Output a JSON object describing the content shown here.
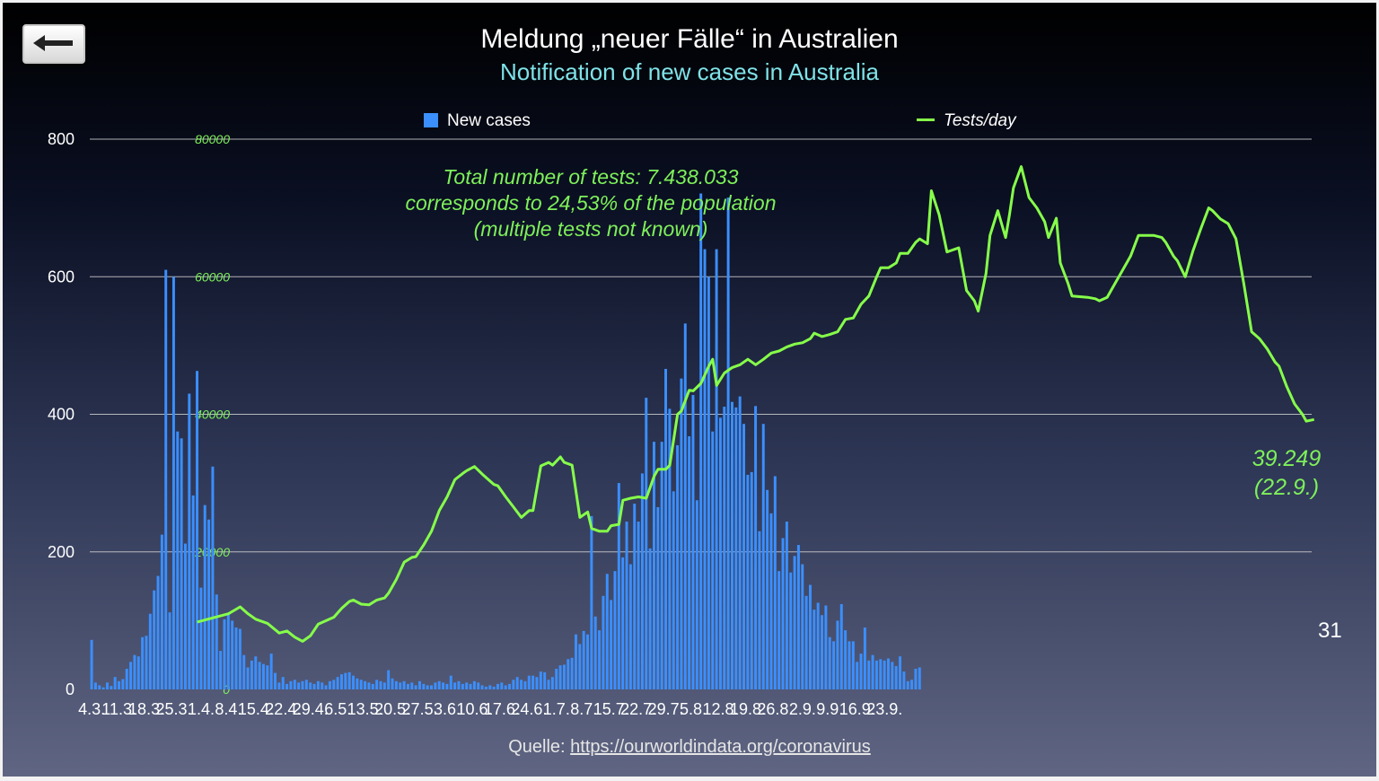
{
  "header": {
    "title": "Meldung „neuer Fälle“ in Australien",
    "subtitle": "Notification of new cases in Australia"
  },
  "legend": {
    "cases": "New cases",
    "tests": "Tests/day"
  },
  "annotation": {
    "line1": "Total number of tests: 7.438.033",
    "line2": "corresponds to 24,53% of the population",
    "line3": "(multiple tests not known)"
  },
  "end_label": {
    "value": "39.249",
    "date": "(22.9.)"
  },
  "page_number": "31",
  "source": {
    "prefix": "Quelle: ",
    "link": "https://ourworldindata.org/coronavirus"
  },
  "colors": {
    "bars": "#3b8fff",
    "tests_line": "#86ff4a",
    "annotation": "#7ef05a",
    "subtitle": "#7fe3e8"
  },
  "icons": {
    "back": "left-arrow-icon"
  },
  "chart_data": {
    "type": "bar",
    "start_date": "2020-03-04",
    "end_date": "2020-09-23",
    "ylim": [
      0,
      800
    ],
    "y2lim": [
      0,
      80000
    ],
    "yticks": [
      "0",
      "200",
      "400",
      "600",
      "800"
    ],
    "y2ticks": [
      "0",
      "20000",
      "40000",
      "60000",
      "80000"
    ],
    "xticks": [
      "4.3.",
      "11.3.",
      "18.3.",
      "25.3.",
      "1.4.",
      "8.4.",
      "15.4.",
      "22.4.",
      "29.4.",
      "6.5.",
      "13.5.",
      "20.5.",
      "27.5.",
      "3.6.",
      "10.6.",
      "17.6.",
      "24.6.",
      "1.7.",
      "8.7.",
      "15.7.",
      "22.7.",
      "29.7.",
      "5.8.",
      "12.8.",
      "19.8.",
      "26.8.",
      "2.9.",
      "9.9.",
      "16.9.",
      "23.9."
    ],
    "series": [
      {
        "name": "New cases",
        "type": "bar",
        "axis": "left",
        "values": [
          72,
          10,
          6,
          3,
          10,
          5,
          18,
          12,
          15,
          30,
          40,
          50,
          48,
          76,
          78,
          110,
          144,
          165,
          225,
          610,
          112,
          600,
          375,
          365,
          212,
          430,
          282,
          463,
          148,
          268,
          247,
          324,
          138,
          56,
          102,
          110,
          100,
          90,
          88,
          50,
          32,
          42,
          48,
          40,
          37,
          35,
          52,
          24,
          10,
          18,
          8,
          12,
          14,
          10,
          12,
          14,
          10,
          8,
          12,
          10,
          6,
          12,
          14,
          18,
          22,
          24,
          25,
          20,
          16,
          14,
          12,
          10,
          8,
          14,
          12,
          10,
          28,
          16,
          12,
          10,
          12,
          8,
          10,
          6,
          12,
          8,
          6,
          6,
          10,
          12,
          10,
          8,
          20,
          10,
          12,
          8,
          10,
          8,
          12,
          10,
          6,
          4,
          6,
          4,
          8,
          10,
          6,
          8,
          14,
          18,
          14,
          12,
          20,
          20,
          18,
          26,
          25,
          14,
          18,
          30,
          35,
          36,
          44,
          46,
          80,
          66,
          85,
          80,
          252,
          106,
          86,
          136,
          168,
          130,
          172,
          300,
          192,
          244,
          182,
          270,
          244,
          314,
          424,
          205,
          360,
          265,
          360,
          466,
          408,
          288,
          355,
          452,
          532,
          368,
          428,
          275,
          721,
          640,
          600,
          375,
          640,
          395,
          411,
          715,
          418,
          410,
          426,
          386,
          312,
          316,
          412,
          230,
          386,
          290,
          256,
          310,
          172,
          220,
          244,
          170,
          194,
          210,
          182,
          136,
          152,
          116,
          126,
          108,
          122,
          76,
          70,
          100,
          124,
          86,
          70,
          70,
          40,
          52,
          90,
          42,
          50,
          42,
          44,
          42,
          45,
          40,
          34,
          48,
          26,
          12,
          14,
          30,
          32
        ]
      },
      {
        "name": "Tests/day",
        "type": "line",
        "axis": "right",
        "points": [
          [
            27,
            9800
          ],
          [
            35,
            11000
          ],
          [
            38,
            12000
          ],
          [
            40,
            11000
          ],
          [
            42,
            10200
          ],
          [
            45,
            9600
          ],
          [
            48,
            8200
          ],
          [
            50,
            8500
          ],
          [
            52,
            7600
          ],
          [
            54,
            7000
          ],
          [
            56,
            7800
          ],
          [
            58,
            9500
          ],
          [
            60,
            10000
          ],
          [
            62,
            10500
          ],
          [
            64,
            11800
          ],
          [
            66,
            12800
          ],
          [
            67,
            13000
          ],
          [
            69,
            12400
          ],
          [
            71,
            12300
          ],
          [
            73,
            13000
          ],
          [
            75,
            13300
          ],
          [
            76,
            14000
          ],
          [
            78,
            16000
          ],
          [
            80,
            18500
          ],
          [
            82,
            19200
          ],
          [
            83,
            19300
          ],
          [
            85,
            21000
          ],
          [
            87,
            23000
          ],
          [
            89,
            26000
          ],
          [
            91,
            28000
          ],
          [
            93,
            30500
          ],
          [
            95,
            31400
          ],
          [
            96,
            31800
          ],
          [
            98,
            32400
          ],
          [
            100,
            31300
          ],
          [
            103,
            29800
          ],
          [
            104,
            29600
          ],
          [
            106,
            28000
          ],
          [
            108,
            26500
          ],
          [
            110,
            25000
          ],
          [
            112,
            26000
          ],
          [
            113,
            26000
          ],
          [
            115,
            32500
          ],
          [
            117,
            33000
          ],
          [
            118,
            32600
          ],
          [
            120,
            33800
          ],
          [
            121,
            33000
          ],
          [
            123,
            32600
          ],
          [
            125,
            25000
          ],
          [
            127,
            25800
          ],
          [
            128,
            23400
          ],
          [
            130,
            23000
          ],
          [
            132,
            23000
          ],
          [
            133,
            23800
          ],
          [
            135,
            24000
          ],
          [
            136,
            27500
          ],
          [
            138,
            27800
          ],
          [
            140,
            28000
          ],
          [
            142,
            27800
          ],
          [
            144,
            31000
          ],
          [
            145,
            32000
          ],
          [
            147,
            32000
          ],
          [
            148,
            32600
          ],
          [
            150,
            40000
          ],
          [
            151,
            40500
          ],
          [
            153,
            43500
          ],
          [
            154,
            43400
          ],
          [
            156,
            44500
          ],
          [
            158,
            47000
          ],
          [
            159,
            48000
          ],
          [
            160,
            44200
          ],
          [
            162,
            46000
          ],
          [
            164,
            46800
          ],
          [
            166,
            47200
          ],
          [
            168,
            48000
          ],
          [
            170,
            47200
          ],
          [
            172,
            48000
          ],
          [
            174,
            48900
          ],
          [
            176,
            49200
          ],
          [
            178,
            49800
          ],
          [
            180,
            50200
          ],
          [
            182,
            50400
          ],
          [
            184,
            51000
          ],
          [
            185,
            51800
          ],
          [
            187,
            51300
          ],
          [
            189,
            51600
          ],
          [
            191,
            52000
          ],
          [
            193,
            53800
          ],
          [
            195,
            54000
          ],
          [
            197,
            56000
          ],
          [
            199,
            57200
          ],
          [
            201,
            60000
          ],
          [
            202,
            61300
          ],
          [
            204,
            61300
          ],
          [
            206,
            62000
          ],
          [
            207,
            63400
          ],
          [
            209,
            63400
          ],
          [
            211,
            65000
          ],
          [
            212,
            65500
          ],
          [
            214,
            64800
          ],
          [
            215,
            72500
          ],
          [
            217,
            69000
          ],
          [
            219,
            63600
          ],
          [
            220,
            63800
          ],
          [
            222,
            64200
          ],
          [
            224,
            58000
          ],
          [
            226,
            56500
          ],
          [
            227,
            55000
          ],
          [
            229,
            60500
          ],
          [
            230,
            66000
          ],
          [
            232,
            69600
          ],
          [
            234,
            65700
          ],
          [
            235,
            69000
          ],
          [
            236,
            72900
          ],
          [
            238,
            76000
          ],
          [
            240,
            71500
          ],
          [
            242,
            70000
          ],
          [
            244,
            68000
          ],
          [
            245,
            65700
          ],
          [
            247,
            68500
          ],
          [
            248,
            62000
          ],
          [
            250,
            59000
          ],
          [
            251,
            57200
          ],
          [
            253,
            57100
          ],
          [
            255,
            57000
          ],
          [
            257,
            56800
          ],
          [
            258,
            56500
          ],
          [
            260,
            57000
          ],
          [
            262,
            59000
          ],
          [
            264,
            61000
          ],
          [
            266,
            63000
          ],
          [
            268,
            66000
          ],
          [
            270,
            66000
          ],
          [
            272,
            66000
          ],
          [
            274,
            65700
          ],
          [
            275,
            65000
          ],
          [
            277,
            63000
          ],
          [
            278,
            62300
          ],
          [
            280,
            60000
          ],
          [
            282,
            63800
          ],
          [
            284,
            67000
          ],
          [
            286,
            70000
          ],
          [
            287,
            69600
          ],
          [
            289,
            68400
          ],
          [
            291,
            67700
          ],
          [
            293,
            65500
          ],
          [
            295,
            59000
          ],
          [
            297,
            52000
          ],
          [
            299,
            51000
          ],
          [
            301,
            49500
          ],
          [
            303,
            47600
          ],
          [
            304,
            47000
          ],
          [
            306,
            44000
          ],
          [
            308,
            41500
          ],
          [
            310,
            40000
          ],
          [
            311,
            39000
          ],
          [
            313,
            39249
          ]
        ]
      }
    ]
  }
}
